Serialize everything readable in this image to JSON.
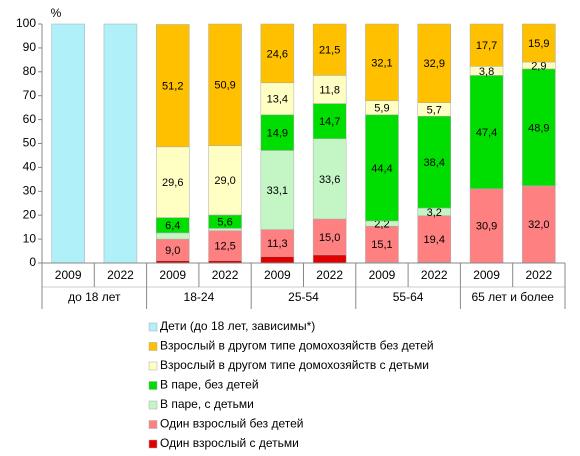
{
  "chart_data": {
    "type": "stacked_bar",
    "y_unit_label": "%",
    "categories": [
      "2009",
      "2022",
      "2009",
      "2022",
      "2009",
      "2022",
      "2009",
      "2022",
      "2009",
      "2022"
    ],
    "groups": [
      "до 18 лет",
      "18-24",
      "25-54",
      "55-64",
      "65 лет и более"
    ],
    "ylim": [
      0,
      100
    ],
    "yticks": [
      0,
      10,
      20,
      30,
      40,
      50,
      60,
      70,
      80,
      90,
      100
    ],
    "grid": false,
    "series": [
      {
        "name": "Один взрослый с детьми",
        "color": "#e00000",
        "values": [
          0,
          0,
          1,
          1,
          2.7,
          3.4,
          0.3,
          0.4,
          0.1,
          0.2
        ],
        "value_labels": [
          null,
          null,
          null,
          null,
          null,
          null,
          null,
          null,
          null,
          null
        ]
      },
      {
        "name": "Один взрослый без детей",
        "color": "#ff8080",
        "values": [
          0,
          0,
          9.0,
          12.5,
          11.3,
          15.0,
          15.1,
          19.4,
          30.9,
          32.0
        ],
        "value_labels": [
          null,
          null,
          "9,0",
          "12,5",
          "11,3",
          "15,0",
          "15,1",
          "19,4",
          "30,9",
          "32,0"
        ]
      },
      {
        "name": "В паре, с детьми",
        "color": "#c4f5c4",
        "values": [
          0,
          0,
          2.6,
          1.0,
          33.1,
          33.6,
          2.2,
          3.2,
          0.1,
          0.1
        ],
        "value_labels": [
          null,
          null,
          null,
          null,
          "33,1",
          "33,6",
          "2,2",
          "3,2",
          null,
          null
        ]
      },
      {
        "name": "В паре, без детей",
        "color": "#00dd00",
        "values": [
          0,
          0,
          6.4,
          5.6,
          14.9,
          14.7,
          44.4,
          38.4,
          47.4,
          48.9
        ],
        "value_labels": [
          null,
          null,
          "6,4",
          "5,6",
          "14,9",
          "14,7",
          "44,4",
          "38,4",
          "47,4",
          "48,9"
        ]
      },
      {
        "name": "Взрослый в другом типе домохозяйств с детьми",
        "color": "#ffffc4",
        "values": [
          0,
          0,
          29.6,
          29.0,
          13.4,
          11.8,
          5.9,
          5.7,
          3.8,
          2.9
        ],
        "value_labels": [
          null,
          null,
          "29,6",
          "29,0",
          "13,4",
          "11,8",
          "5,9",
          "5,7",
          "3,8",
          "2,9"
        ]
      },
      {
        "name": "Взрослый в другом типе домохозяйств без детей",
        "color": "#ffc000",
        "values": [
          0,
          0,
          51.2,
          50.9,
          24.6,
          21.5,
          32.1,
          32.9,
          17.7,
          15.9
        ],
        "value_labels": [
          null,
          null,
          "51,2",
          "50,9",
          "24,6",
          "21,5",
          "32,1",
          "32,9",
          "17,7",
          "15,9"
        ]
      },
      {
        "name": "Дети (до 18 лет, зависимы*)",
        "color": "#b0f0f8",
        "values": [
          100,
          100,
          0,
          0,
          0,
          0,
          0,
          0,
          0,
          0
        ],
        "value_labels": [
          null,
          null,
          null,
          null,
          null,
          null,
          null,
          null,
          null,
          null
        ]
      }
    ]
  }
}
